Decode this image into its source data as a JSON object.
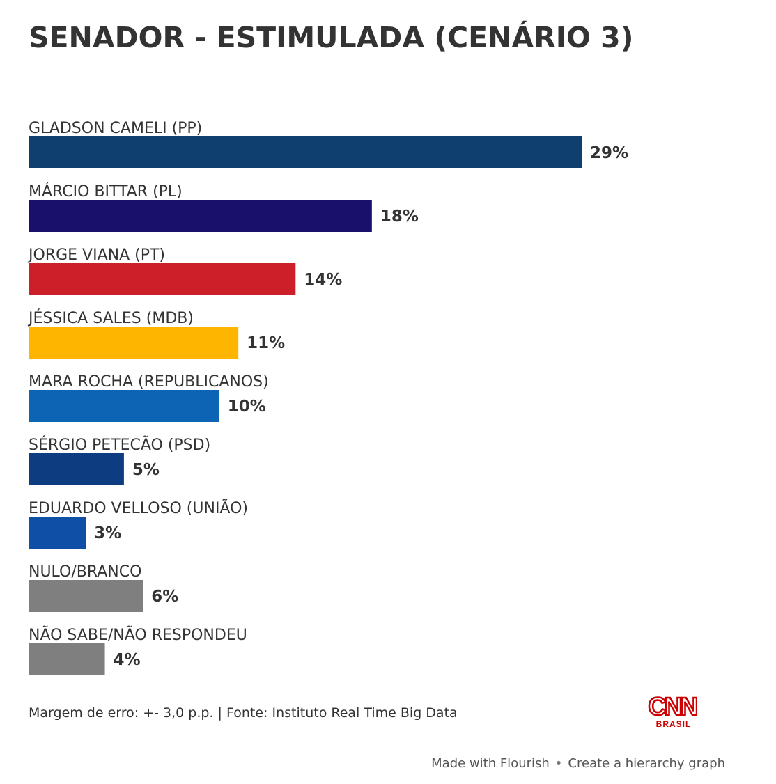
{
  "chart_data": {
    "type": "bar",
    "orientation": "horizontal",
    "title": "SENADOR - ESTIMULADA (CENÁRIO 3)",
    "xlabel": "",
    "ylabel": "",
    "xlim": [
      0,
      29
    ],
    "grid": false,
    "categories": [
      "GLADSON CAMELI (PP)",
      "MÁRCIO BITTAR (PL)",
      "JORGE VIANA (PT)",
      "JÉSSICA SALES (MDB)",
      "MARA ROCHA (REPUBLICANOS)",
      "SÉRGIO PETECÃO (PSD)",
      "EDUARDO VELLOSO (UNIÃO)",
      "NULO/BRANCO",
      "NÃO SABE/NÃO RESPONDEU"
    ],
    "values": [
      29,
      18,
      14,
      11,
      10,
      5,
      3,
      6,
      4
    ],
    "value_labels": [
      "29%",
      "18%",
      "14%",
      "11%",
      "10%",
      "5%",
      "3%",
      "6%",
      "4%"
    ],
    "colors": [
      "#0e3f6e",
      "#18106a",
      "#cc1f2a",
      "#fdb500",
      "#0e64b4",
      "#0d3c80",
      "#0f4fa6",
      "#7f7f7f",
      "#7f7f7f"
    ]
  },
  "footer": {
    "source": "Margem de erro: +- 3,0 p.p. | Fonte: Instituto Real Time Big Data"
  },
  "logo": {
    "main": "CNN",
    "sub": "BRASIL",
    "color": "#cc0000"
  },
  "flourish": {
    "made_with": "Made with Flourish",
    "separator": "•",
    "create": "Create a hierarchy graph"
  }
}
